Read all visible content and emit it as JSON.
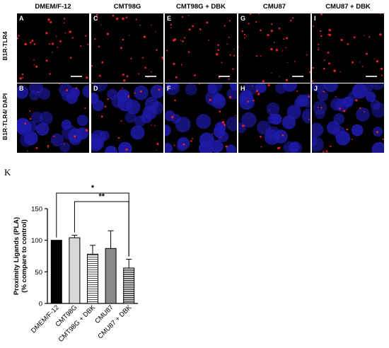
{
  "panels": {
    "columns": [
      "DMEM/F-12",
      "CMT98G",
      "CMT98G + DBK",
      "CMU87",
      "CMU87 + DBK"
    ],
    "row_labels": [
      "B1R-TLR4",
      "B1R-TLR4/ DAPI"
    ],
    "letters": [
      [
        "A",
        "C",
        "E",
        "G",
        "I"
      ],
      [
        "B",
        "D",
        "F",
        "H",
        "J"
      ]
    ],
    "colors": {
      "pla_dot": "#e0202a",
      "dapi": "#1e1aa8",
      "background": "#000000"
    }
  },
  "panel_k_letter": "K",
  "chart_data": {
    "type": "bar",
    "categories": [
      "DMEM/F-12",
      "CMT98G",
      "CMT98G + DBK",
      "CMU87",
      "CMU87 + DBK"
    ],
    "values": [
      100,
      104,
      78,
      87,
      56
    ],
    "errors": [
      0,
      4,
      14,
      28,
      14
    ],
    "fills": [
      "solid-black",
      "light-gray",
      "horizontal-stripes",
      "medium-gray",
      "horizontal-stripes-dark"
    ],
    "ylabel_line1": "Proximity Ligands (PLA)",
    "ylabel_line2": "(% compare to control)",
    "ylim": [
      0,
      150
    ],
    "yticks": [
      "0",
      "50",
      "100",
      "150"
    ],
    "significance": [
      {
        "from": 0,
        "to": 4,
        "label": "*"
      },
      {
        "from": 1,
        "to": 4,
        "label": "**"
      }
    ]
  }
}
